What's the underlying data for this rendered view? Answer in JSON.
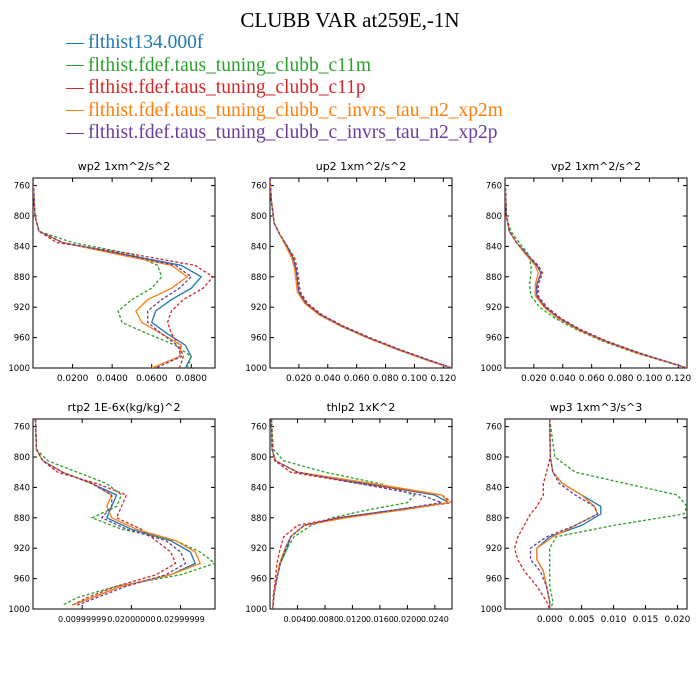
{
  "title": "CLUBB VAR at259E,-1N",
  "legend": [
    {
      "name": "flthist134.000f",
      "color": "#1f77b4"
    },
    {
      "name": "flthist.fdef.taus_tuning_clubb_c11m",
      "color": "#2ca02c"
    },
    {
      "name": "flthist.fdef.taus_tuning_clubb_c11p",
      "color": "#d62728"
    },
    {
      "name": "flthist.fdef.taus_tuning_clubb_c_invrs_tau_n2_xp2m",
      "color": "#ff7f0e"
    },
    {
      "name": "flthist.fdef.taus_tuning_clubb_c_invrs_tau_n2_xp2p",
      "color": "#6a3d9a"
    }
  ],
  "chart_data": [
    {
      "type": "line",
      "title": "wp2   1xm^2/s^2",
      "ylim": [
        1000,
        750
      ],
      "xlim": [
        0,
        0.092
      ],
      "yticks": [
        "760",
        "800",
        "840",
        "880",
        "920",
        "960",
        "1000"
      ],
      "xticks": [
        "0.0200",
        "0.0400",
        "0.0600",
        "0.0800"
      ],
      "xtick_values": [
        0.02,
        0.04,
        0.06,
        0.08
      ],
      "y": [
        750,
        800,
        820,
        835,
        850,
        865,
        880,
        895,
        910,
        925,
        940,
        955,
        970,
        985,
        1000
      ],
      "series": [
        {
          "name": "flthist134.000f",
          "color": "#1f77b4",
          "dash": "solid",
          "values": [
            0,
            0.001,
            0.003,
            0.015,
            0.045,
            0.075,
            0.085,
            0.08,
            0.07,
            0.062,
            0.06,
            0.068,
            0.077,
            0.08,
            0.077
          ]
        },
        {
          "name": "flthist.fdef.taus_tuning_clubb_c11m",
          "color": "#2ca02c",
          "dash": "dashed",
          "values": [
            0,
            0.001,
            0.003,
            0.02,
            0.05,
            0.063,
            0.065,
            0.06,
            0.05,
            0.043,
            0.045,
            0.058,
            0.072,
            0.08,
            0.078
          ]
        },
        {
          "name": "flthist.fdef.taus_tuning_clubb_c11p",
          "color": "#d62728",
          "dash": "dashed",
          "values": [
            0,
            0.001,
            0.003,
            0.012,
            0.05,
            0.082,
            0.091,
            0.086,
            0.076,
            0.07,
            0.068,
            0.07,
            0.074,
            0.076,
            0.074
          ]
        },
        {
          "name": "flthist.fdef.taus_tuning_clubb_c_invrs_tau_n2_xp2m",
          "color": "#ff7f0e",
          "dash": "solid",
          "values": [
            0,
            0.001,
            0.003,
            0.015,
            0.042,
            0.07,
            0.078,
            0.07,
            0.058,
            0.052,
            0.055,
            0.065,
            0.075,
            0.074,
            0.06
          ]
        },
        {
          "name": "flthist.fdef.taus_tuning_clubb_c_invrs_tau_n2_xp2p",
          "color": "#6a3d9a",
          "dash": "dashed",
          "values": [
            0,
            0.001,
            0.003,
            0.015,
            0.045,
            0.072,
            0.08,
            0.074,
            0.065,
            0.058,
            0.058,
            0.065,
            0.073,
            0.075,
            0.062
          ]
        }
      ]
    },
    {
      "type": "line",
      "title": "up2   1xm^2/s^2",
      "ylim": [
        1000,
        750
      ],
      "xlim": [
        0,
        0.126
      ],
      "yticks": [
        "760",
        "800",
        "840",
        "880",
        "920",
        "960",
        "1000"
      ],
      "xticks": [
        "0.020",
        "0.040",
        "0.060",
        "0.080",
        "0.100",
        "0.120"
      ],
      "xtick_values": [
        0.02,
        0.04,
        0.06,
        0.08,
        0.1,
        0.12
      ],
      "y": [
        750,
        780,
        810,
        825,
        840,
        855,
        870,
        885,
        900,
        915,
        930,
        945,
        960,
        975,
        990,
        1000
      ],
      "series": [
        {
          "name": "flthist134.000f",
          "color": "#1f77b4",
          "dash": "solid",
          "values": [
            0,
            0.001,
            0.003,
            0.007,
            0.012,
            0.016,
            0.018,
            0.019,
            0.02,
            0.025,
            0.035,
            0.05,
            0.068,
            0.088,
            0.11,
            0.126
          ]
        },
        {
          "name": "flthist.fdef.taus_tuning_clubb_c11m",
          "color": "#2ca02c",
          "dash": "dashed",
          "values": [
            0,
            0.001,
            0.003,
            0.007,
            0.012,
            0.016,
            0.018,
            0.019,
            0.02,
            0.025,
            0.035,
            0.05,
            0.068,
            0.088,
            0.11,
            0.126
          ]
        },
        {
          "name": "flthist.fdef.taus_tuning_clubb_c11p",
          "color": "#d62728",
          "dash": "dashed",
          "values": [
            0,
            0.001,
            0.003,
            0.007,
            0.012,
            0.017,
            0.019,
            0.02,
            0.021,
            0.026,
            0.036,
            0.051,
            0.069,
            0.089,
            0.111,
            0.126
          ]
        },
        {
          "name": "flthist.fdef.taus_tuning_clubb_c_invrs_tau_n2_xp2m",
          "color": "#ff7f0e",
          "dash": "solid",
          "values": [
            0,
            0.001,
            0.003,
            0.007,
            0.011,
            0.015,
            0.017,
            0.018,
            0.019,
            0.024,
            0.034,
            0.049,
            0.067,
            0.087,
            0.109,
            0.126
          ]
        },
        {
          "name": "flthist.fdef.taus_tuning_clubb_c_invrs_tau_n2_xp2p",
          "color": "#6a3d9a",
          "dash": "dashed",
          "values": [
            0,
            0.001,
            0.003,
            0.007,
            0.012,
            0.016,
            0.018,
            0.019,
            0.02,
            0.025,
            0.035,
            0.05,
            0.068,
            0.088,
            0.11,
            0.126
          ]
        }
      ]
    },
    {
      "type": "line",
      "title": "vp2   1xm^2/s^2",
      "ylim": [
        1000,
        750
      ],
      "xlim": [
        0,
        0.126
      ],
      "yticks": [
        "760",
        "800",
        "840",
        "880",
        "920",
        "960",
        "1000"
      ],
      "xticks": [
        "0.020",
        "0.040",
        "0.060",
        "0.080",
        "0.100",
        "0.120"
      ],
      "xtick_values": [
        0.02,
        0.04,
        0.06,
        0.08,
        0.1,
        0.12
      ],
      "y": [
        750,
        800,
        820,
        835,
        850,
        865,
        875,
        890,
        905,
        920,
        935,
        950,
        965,
        980,
        1000
      ],
      "series": [
        {
          "name": "flthist134.000f",
          "color": "#1f77b4",
          "dash": "solid",
          "values": [
            0,
            0.001,
            0.003,
            0.008,
            0.015,
            0.022,
            0.025,
            0.022,
            0.022,
            0.028,
            0.038,
            0.052,
            0.07,
            0.092,
            0.126
          ]
        },
        {
          "name": "flthist.fdef.taus_tuning_clubb_c11m",
          "color": "#2ca02c",
          "dash": "dashed",
          "values": [
            0,
            0.001,
            0.004,
            0.01,
            0.016,
            0.018,
            0.018,
            0.017,
            0.018,
            0.024,
            0.035,
            0.05,
            0.068,
            0.09,
            0.126
          ]
        },
        {
          "name": "flthist.fdef.taus_tuning_clubb_c11p",
          "color": "#d62728",
          "dash": "dashed",
          "values": [
            0,
            0.001,
            0.003,
            0.008,
            0.015,
            0.023,
            0.026,
            0.023,
            0.023,
            0.029,
            0.039,
            0.053,
            0.071,
            0.093,
            0.126
          ]
        },
        {
          "name": "flthist.fdef.taus_tuning_clubb_c_invrs_tau_n2_xp2m",
          "color": "#ff7f0e",
          "dash": "solid",
          "values": [
            0,
            0.001,
            0.003,
            0.008,
            0.014,
            0.021,
            0.023,
            0.021,
            0.021,
            0.027,
            0.037,
            0.051,
            0.069,
            0.091,
            0.126
          ]
        },
        {
          "name": "flthist.fdef.taus_tuning_clubb_c_invrs_tau_n2_xp2p",
          "color": "#6a3d9a",
          "dash": "dashed",
          "values": [
            0,
            0.001,
            0.003,
            0.008,
            0.015,
            0.022,
            0.025,
            0.022,
            0.022,
            0.028,
            0.038,
            0.052,
            0.07,
            0.092,
            0.126
          ]
        }
      ]
    },
    {
      "type": "line",
      "title": "rtp2   1E-6x(kg/kg)^2",
      "ylim": [
        1000,
        750
      ],
      "xlim": [
        0,
        0.037
      ],
      "yticks": [
        "760",
        "800",
        "840",
        "880",
        "920",
        "960",
        "1000"
      ],
      "xticks": [
        "0.00999999",
        "0.02000000",
        "0.02999999"
      ],
      "xtick_values": [
        0.01,
        0.02,
        0.03
      ],
      "y": [
        750,
        790,
        805,
        820,
        835,
        850,
        865,
        880,
        895,
        910,
        925,
        940,
        955,
        970,
        985,
        995
      ],
      "series": [
        {
          "name": "flthist134.000f",
          "color": "#1f77b4",
          "dash": "solid",
          "values": [
            0.0005,
            0.0007,
            0.002,
            0.006,
            0.012,
            0.017,
            0.016,
            0.015,
            0.02,
            0.028,
            0.032,
            0.033,
            0.028,
            0.018,
            0.012,
            0.008
          ]
        },
        {
          "name": "flthist.fdef.taus_tuning_clubb_c11m",
          "color": "#2ca02c",
          "dash": "dashed",
          "values": [
            0.0005,
            0.0007,
            0.003,
            0.009,
            0.015,
            0.018,
            0.017,
            0.012,
            0.018,
            0.029,
            0.034,
            0.037,
            0.03,
            0.017,
            0.009,
            0.006
          ]
        },
        {
          "name": "flthist.fdef.taus_tuning_clubb_c11p",
          "color": "#d62728",
          "dash": "dashed",
          "values": [
            0.0005,
            0.0007,
            0.002,
            0.005,
            0.013,
            0.019,
            0.018,
            0.017,
            0.022,
            0.025,
            0.028,
            0.029,
            0.025,
            0.017,
            0.011,
            0.008
          ]
        },
        {
          "name": "flthist.fdef.taus_tuning_clubb_c_invrs_tau_n2_xp2m",
          "color": "#ff7f0e",
          "dash": "solid",
          "values": [
            0.0005,
            0.0007,
            0.002,
            0.006,
            0.012,
            0.016,
            0.015,
            0.016,
            0.021,
            0.029,
            0.033,
            0.034,
            0.028,
            0.018,
            0.012,
            0.008
          ]
        },
        {
          "name": "flthist.fdef.taus_tuning_clubb_c_invrs_tau_n2_xp2p",
          "color": "#6a3d9a",
          "dash": "dashed",
          "values": [
            0.0005,
            0.0007,
            0.002,
            0.006,
            0.012,
            0.016,
            0.016,
            0.014,
            0.019,
            0.027,
            0.03,
            0.031,
            0.027,
            0.019,
            0.013,
            0.009
          ]
        }
      ]
    },
    {
      "type": "line",
      "title": "thlp2   1xK^2",
      "ylim": [
        1000,
        750
      ],
      "xlim": [
        0,
        0.0265
      ],
      "yticks": [
        "760",
        "800",
        "840",
        "880",
        "920",
        "960",
        "1000"
      ],
      "xticks": [
        "0.0040",
        "0.0080",
        "0.0120",
        "0.0160",
        "0.0200",
        "0.0240"
      ],
      "xtick_values": [
        0.004,
        0.008,
        0.012,
        0.016,
        0.02,
        0.024
      ],
      "y": [
        750,
        790,
        805,
        820,
        835,
        850,
        860,
        870,
        880,
        890,
        905,
        920,
        940,
        960,
        980,
        1000
      ],
      "series": [
        {
          "name": "flthist134.000f",
          "color": "#1f77b4",
          "dash": "solid",
          "values": [
            0.0002,
            0.0003,
            0.0008,
            0.004,
            0.014,
            0.024,
            0.026,
            0.018,
            0.01,
            0.005,
            0.003,
            0.0025,
            0.0015,
            0.001,
            0.0006,
            0.0004
          ]
        },
        {
          "name": "flthist.fdef.taus_tuning_clubb_c11m",
          "color": "#2ca02c",
          "dash": "dashed",
          "values": [
            0.0002,
            0.0005,
            0.002,
            0.008,
            0.016,
            0.021,
            0.02,
            0.014,
            0.009,
            0.006,
            0.0035,
            0.0025,
            0.0015,
            0.001,
            0.0006,
            0.0004
          ]
        },
        {
          "name": "flthist.fdef.taus_tuning_clubb_c11p",
          "color": "#d62728",
          "dash": "dashed",
          "values": [
            0.0002,
            0.0003,
            0.0007,
            0.003,
            0.013,
            0.025,
            0.0265,
            0.019,
            0.01,
            0.004,
            0.002,
            0.0015,
            0.001,
            0.0008,
            0.0005,
            0.0004
          ]
        },
        {
          "name": "flthist.fdef.taus_tuning_clubb_c_invrs_tau_n2_xp2m",
          "color": "#ff7f0e",
          "dash": "solid",
          "values": [
            0.0002,
            0.0003,
            0.0008,
            0.004,
            0.015,
            0.025,
            0.026,
            0.019,
            0.011,
            0.005,
            0.003,
            0.0022,
            0.0014,
            0.001,
            0.0006,
            0.0004
          ]
        },
        {
          "name": "flthist.fdef.taus_tuning_clubb_c_invrs_tau_n2_xp2p",
          "color": "#6a3d9a",
          "dash": "dashed",
          "values": [
            0.0002,
            0.0003,
            0.0008,
            0.004,
            0.013,
            0.022,
            0.025,
            0.018,
            0.01,
            0.005,
            0.003,
            0.0023,
            0.0015,
            0.001,
            0.0006,
            0.0004
          ]
        }
      ]
    },
    {
      "type": "line",
      "title": "wp3   1xm^3/s^3",
      "ylim": [
        1000,
        750
      ],
      "xlim": [
        -0.007,
        0.0215
      ],
      "yticks": [
        "760",
        "800",
        "840",
        "880",
        "920",
        "960",
        "1000"
      ],
      "xticks": [
        "0.000",
        "0.005",
        "0.010",
        "0.015",
        "0.020"
      ],
      "xtick_values": [
        0,
        0.005,
        0.01,
        0.015,
        0.02
      ],
      "y": [
        750,
        800,
        820,
        835,
        850,
        865,
        875,
        890,
        905,
        920,
        935,
        950,
        970,
        990,
        1000
      ],
      "series": [
        {
          "name": "flthist134.000f",
          "color": "#1f77b4",
          "dash": "solid",
          "values": [
            0,
            0.0001,
            0.0005,
            0.002,
            0.005,
            0.008,
            0.008,
            0.005,
            0,
            -0.002,
            -0.002,
            -0.001,
            -0.0005,
            0,
            0
          ]
        },
        {
          "name": "flthist.fdef.taus_tuning_clubb_c11m",
          "color": "#2ca02c",
          "dash": "dashed",
          "values": [
            0,
            0.0008,
            0.004,
            0.012,
            0.02,
            0.0215,
            0.021,
            0.01,
            0.001,
            0,
            0,
            0,
            0,
            0.0005,
            0.0002
          ]
        },
        {
          "name": "flthist.fdef.taus_tuning_clubb_c11p",
          "color": "#d62728",
          "dash": "dashed",
          "values": [
            0,
            0.0001,
            -0.0005,
            -0.001,
            -0.001,
            -0.002,
            -0.003,
            -0.004,
            -0.005,
            -0.0055,
            -0.005,
            -0.004,
            -0.002,
            -0.0005,
            0
          ]
        },
        {
          "name": "flthist.fdef.taus_tuning_clubb_c_invrs_tau_n2_xp2m",
          "color": "#ff7f0e",
          "dash": "solid",
          "values": [
            0,
            0.0001,
            0.0005,
            0.002,
            0.005,
            0.007,
            0.0075,
            0.004,
            0.0005,
            -0.002,
            -0.002,
            -0.001,
            -0.0005,
            0,
            0
          ]
        },
        {
          "name": "flthist.fdef.taus_tuning_clubb_c_invrs_tau_n2_xp2p",
          "color": "#6a3d9a",
          "dash": "dashed",
          "values": [
            0,
            0.0001,
            0.0005,
            0.0015,
            0.004,
            0.007,
            0.0075,
            0.004,
            -0.0005,
            -0.003,
            -0.003,
            -0.0015,
            -0.0005,
            0,
            0
          ]
        }
      ]
    }
  ]
}
